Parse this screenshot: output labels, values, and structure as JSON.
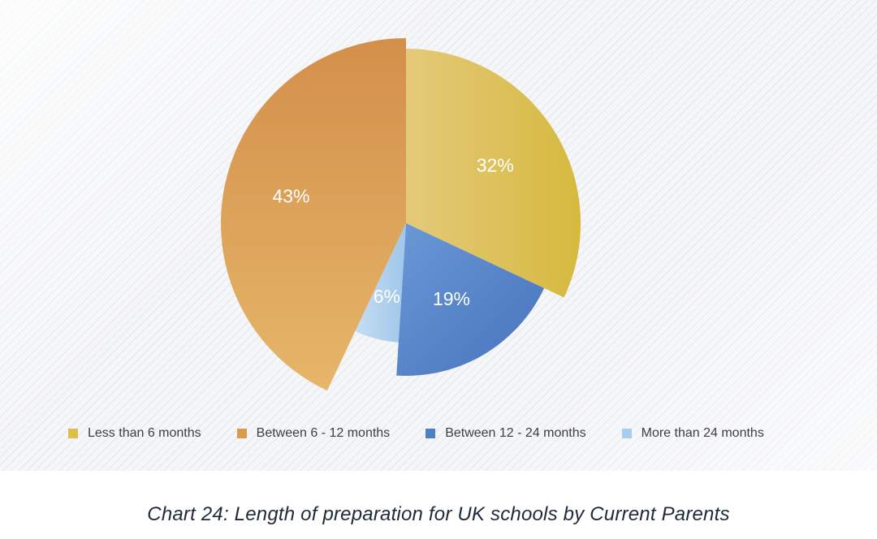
{
  "chart_data": {
    "type": "pie",
    "categories": [
      "Less than 6 months",
      "Between 6 - 12 months",
      "Between 12 - 24 months",
      "More than 24 months"
    ],
    "values": [
      32,
      43,
      19,
      6
    ],
    "data_labels": [
      "32%",
      "43%",
      "19%",
      "6%"
    ],
    "colors": [
      "#dcbe4c",
      "#db9a4f",
      "#4f7fc4",
      "#a9cdec"
    ],
    "title": "Chart 24: Length of preparation for UK schools by Current Parents",
    "legend": "bottom",
    "variable_radius": true
  },
  "legend": {
    "items": [
      {
        "label": "Less than 6 months",
        "color": "#dcbe4c"
      },
      {
        "label": "Between 6 - 12 months",
        "color": "#db9a4f"
      },
      {
        "label": "Between 12 - 24 months",
        "color": "#4f7fc4"
      },
      {
        "label": "More than 24 months",
        "color": "#a9cdec"
      }
    ]
  },
  "caption": "Chart 24: Length of preparation for UK schools by Current Parents"
}
